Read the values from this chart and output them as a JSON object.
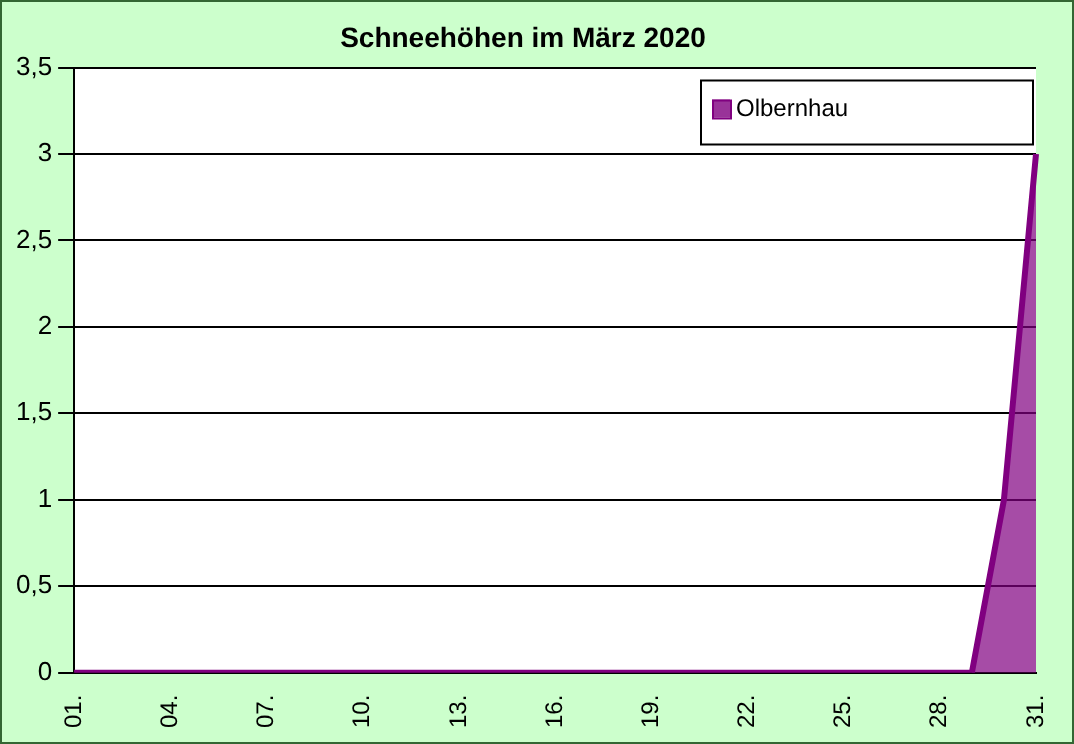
{
  "chart_data": {
    "type": "area",
    "title": "Schneehöhen im März 2020",
    "categories": [
      "01.",
      null,
      null,
      "04.",
      null,
      null,
      "07.",
      null,
      null,
      "10.",
      null,
      null,
      "13.",
      null,
      null,
      "16.",
      null,
      null,
      "19.",
      null,
      null,
      "22.",
      null,
      null,
      "25.",
      null,
      null,
      "28.",
      null,
      null,
      "31."
    ],
    "series": [
      {
        "name": "Olbernhau",
        "color": "#800080",
        "values": [
          0,
          0,
          0,
          0,
          0,
          0,
          0,
          0,
          0,
          0,
          0,
          0,
          0,
          0,
          0,
          0,
          0,
          0,
          0,
          0,
          0,
          0,
          0,
          0,
          0,
          0,
          0,
          0,
          0,
          1,
          3
        ]
      }
    ],
    "ylim": [
      0,
      3.5
    ],
    "yticks": [
      0,
      {
        "value": 0.5,
        "label": "0,5"
      },
      1,
      {
        "value": 1.5,
        "label": "1,5"
      },
      2,
      {
        "value": 2.5,
        "label": "2,5"
      },
      3,
      {
        "value": 3.5,
        "label": "3,5"
      }
    ],
    "grid": "y",
    "legend": "top right"
  }
}
